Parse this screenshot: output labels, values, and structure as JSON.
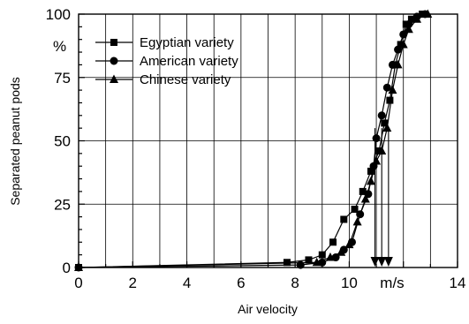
{
  "chart_data": {
    "type": "line",
    "xlabel": "Air velocity",
    "x_unit": "m/s",
    "ylabel": "Separated peanut pods",
    "y_unit": "%",
    "xlim": [
      0,
      14
    ],
    "ylim": [
      0,
      100
    ],
    "x_ticks": [
      "0",
      "2",
      "4",
      "6",
      "8",
      "10",
      "14"
    ],
    "y_ticks": [
      "0",
      "25",
      "50",
      "75",
      "100"
    ],
    "grid": true,
    "legend_position": "top-left",
    "series": [
      {
        "name": "Egyptian variety",
        "marker": "square",
        "x": [
          0,
          7.7,
          8.5,
          9.0,
          9.4,
          9.8,
          10.2,
          10.5,
          10.8,
          11.1,
          11.3,
          11.5,
          11.7,
          11.9,
          12.1,
          12.3,
          12.7
        ],
        "y": [
          0,
          2,
          3,
          5,
          10,
          19,
          23,
          30,
          38,
          46,
          57,
          66,
          80,
          88,
          96,
          98,
          100
        ]
      },
      {
        "name": "American variety",
        "marker": "circle",
        "x": [
          0,
          8.2,
          9.0,
          9.5,
          9.8,
          10.1,
          10.4,
          10.7,
          10.9,
          11.0,
          11.2,
          11.4,
          11.6,
          11.8,
          12.0,
          12.2,
          12.5,
          12.8
        ],
        "y": [
          0,
          1,
          2,
          4,
          7,
          10,
          21,
          29,
          40,
          51,
          60,
          71,
          80,
          86,
          92,
          96,
          99,
          100
        ]
      },
      {
        "name": "Chinese variety",
        "marker": "triangle",
        "x": [
          0,
          8.8,
          9.3,
          9.7,
          10.0,
          10.3,
          10.6,
          10.8,
          11.0,
          11.2,
          11.4,
          11.6,
          11.8,
          12.0,
          12.2,
          12.5,
          12.9
        ],
        "y": [
          0,
          2,
          4,
          6,
          9,
          18,
          27,
          34,
          42,
          46,
          55,
          70,
          80,
          88,
          94,
          98,
          100
        ]
      }
    ],
    "annotations": [
      {
        "type": "arrow-down",
        "x": 10.95
      },
      {
        "type": "arrow-down",
        "x": 11.2
      },
      {
        "type": "arrow-down",
        "x": 11.45
      }
    ]
  }
}
